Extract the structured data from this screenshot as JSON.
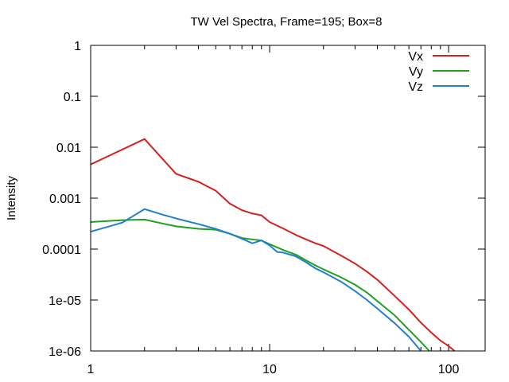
{
  "chart_data": {
    "type": "line",
    "title": "TW Vel Spectra, Frame=195; Box=8",
    "xlabel": "",
    "ylabel": "Intensity",
    "xscale": "log",
    "yscale": "log",
    "xlim": [
      1,
      160
    ],
    "ylim": [
      1e-06,
      1
    ],
    "x_ticks": [
      {
        "value": 1,
        "label": "1"
      },
      {
        "value": 10,
        "label": "10"
      },
      {
        "value": 100,
        "label": "100"
      }
    ],
    "y_ticks": [
      {
        "value": 1,
        "label": "1"
      },
      {
        "value": 0.1,
        "label": "0.1"
      },
      {
        "value": 0.01,
        "label": "0.01"
      },
      {
        "value": 0.001,
        "label": "0.001"
      },
      {
        "value": 0.0001,
        "label": "0.0001"
      },
      {
        "value": 1e-05,
        "label": "1e-05"
      },
      {
        "value": 1e-06,
        "label": "1e-06"
      }
    ],
    "grid": false,
    "legend_position": "top-right",
    "series": [
      {
        "name": "Vx",
        "color": "#d62020",
        "x": [
          1,
          2,
          3,
          4,
          5,
          6,
          7,
          8,
          9,
          10,
          12,
          14,
          16,
          18,
          20,
          25,
          30,
          35,
          40,
          50,
          60,
          70,
          80,
          90,
          100,
          108
        ],
        "y": [
          0.0046,
          0.0145,
          0.003,
          0.0021,
          0.0014,
          0.00078,
          0.00058,
          0.0005,
          0.00046,
          0.00034,
          0.00025,
          0.00019,
          0.000155,
          0.00013,
          0.000115,
          7.5e-05,
          5.2e-05,
          3.6e-05,
          2.5e-05,
          1.2e-05,
          6.5e-06,
          3.6e-06,
          2.3e-06,
          1.6e-06,
          1.25e-06,
          1e-06
        ]
      },
      {
        "name": "Vy",
        "color": "#20a020",
        "x": [
          1,
          1.5,
          2,
          2.5,
          3,
          4,
          5,
          6,
          7,
          8,
          9,
          10,
          12,
          14,
          16,
          18,
          20,
          25,
          30,
          35,
          40,
          50,
          60,
          70,
          78
        ],
        "y": [
          0.00034,
          0.00037,
          0.00038,
          0.00032,
          0.00028,
          0.00025,
          0.00024,
          0.0002,
          0.000165,
          0.000155,
          0.000148,
          0.000125,
          9.5e-05,
          7.8e-05,
          6e-05,
          4.8e-05,
          4e-05,
          2.8e-05,
          2e-05,
          1.4e-05,
          9.5e-06,
          5e-06,
          2.6e-06,
          1.5e-06,
          1e-06
        ]
      },
      {
        "name": "Vz",
        "color": "#1f7fd0",
        "x": [
          1,
          1.5,
          2,
          2.5,
          3,
          4,
          5,
          6,
          7,
          8,
          9,
          10,
          11,
          12,
          14,
          16,
          18,
          20,
          25,
          30,
          35,
          40,
          50,
          60,
          70
        ],
        "y": [
          0.00022,
          0.00033,
          0.00061,
          0.00048,
          0.0004,
          0.00031,
          0.00025,
          0.0002,
          0.00016,
          0.00013,
          0.000148,
          0.000118,
          8.8e-05,
          8.5e-05,
          7.2e-05,
          5.5e-05,
          4.2e-05,
          3.5e-05,
          2.3e-05,
          1.5e-05,
          1e-05,
          6.8e-06,
          3.5e-06,
          1.9e-06,
          1e-06
        ]
      }
    ]
  }
}
